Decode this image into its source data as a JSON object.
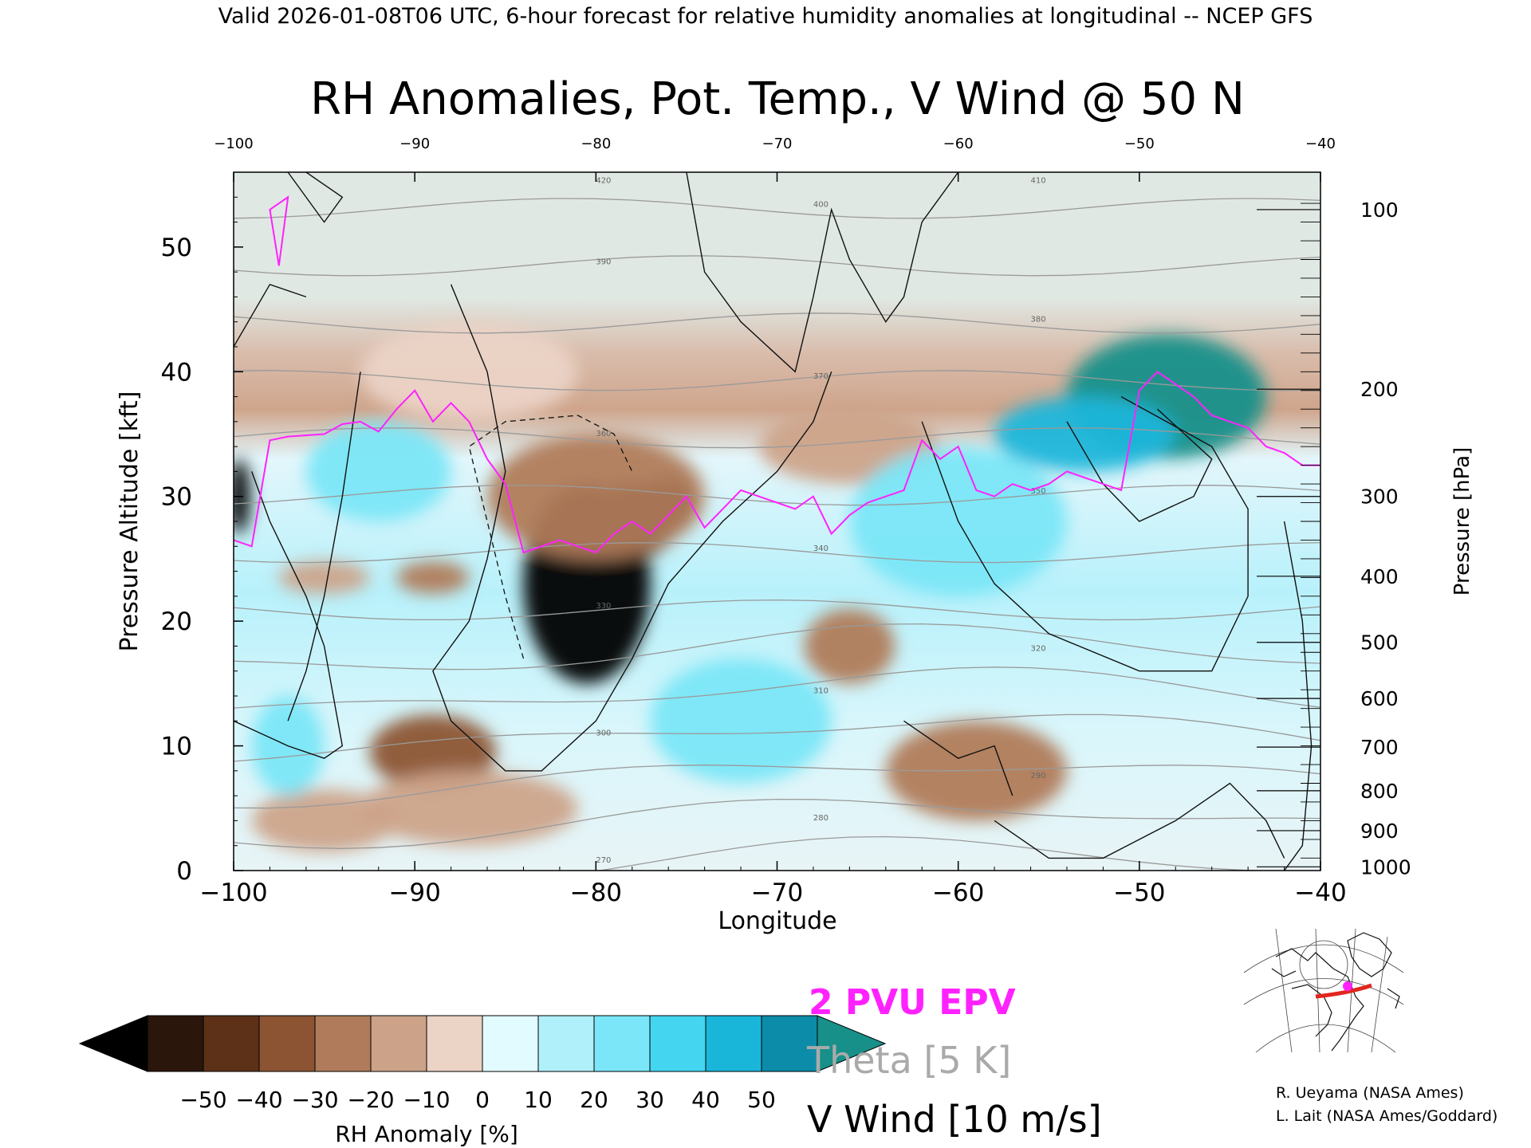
{
  "header": "Valid 2026-01-08T06 UTC, 6-hour forecast for relative humidity anomalies at longitudinal -- NCEP GFS",
  "chart_data": {
    "type": "heatmap",
    "title": "RH Anomalies, Pot. Temp., V Wind @ 50 N",
    "xlabel": "Longitude",
    "ylabel_left": "Pressure Altitude [kft]",
    "ylabel_right": "Pressure [hPa]",
    "xlim": [
      -100,
      -40
    ],
    "ylim": [
      0,
      56
    ],
    "x_ticks": [
      -100,
      -90,
      -80,
      -70,
      -60,
      -50,
      -40
    ],
    "x_tick_labels": [
      "−100",
      "−90",
      "−80",
      "−70",
      "−60",
      "−50",
      "−40"
    ],
    "y_ticks": [
      0,
      10,
      20,
      30,
      40,
      50
    ],
    "pressure_ticks": [
      {
        "hpa": "100",
        "kft": 53
      },
      {
        "hpa": "200",
        "kft": 38.6
      },
      {
        "hpa": "300",
        "kft": 30
      },
      {
        "hpa": "400",
        "kft": 23.6
      },
      {
        "hpa": "500",
        "kft": 18.3
      },
      {
        "hpa": "600",
        "kft": 13.8
      },
      {
        "hpa": "700",
        "kft": 9.9
      },
      {
        "hpa": "800",
        "kft": 6.4
      },
      {
        "hpa": "900",
        "kft": 3.2
      },
      {
        "hpa": "1000",
        "kft": 0.3
      }
    ],
    "rh_anomaly_regions": [
      {
        "lon": -48.5,
        "kft": 38,
        "rlon": 5.5,
        "rkft": 5,
        "value": 50
      },
      {
        "lon": -53,
        "kft": 35,
        "rlon": 5,
        "rkft": 3,
        "value": 40
      },
      {
        "lon": -80.5,
        "kft": 23,
        "rlon": 3.5,
        "rkft": 8,
        "value": -50
      },
      {
        "lon": -78,
        "kft": 28,
        "rlon": 2.5,
        "rkft": 3,
        "value": -50
      },
      {
        "lon": -76,
        "kft": 29.5,
        "rlon": 1.5,
        "rkft": 2,
        "value": -50
      },
      {
        "lon": -99.7,
        "kft": 30,
        "rlon": 0.6,
        "rkft": 3,
        "value": -50
      },
      {
        "lon": -80,
        "kft": 30,
        "rlon": 6,
        "rkft": 5,
        "value": -30
      },
      {
        "lon": -89,
        "kft": 9.5,
        "rlon": 3.5,
        "rkft": 3,
        "value": -40
      },
      {
        "lon": -89,
        "kft": 23.5,
        "rlon": 2,
        "rkft": 1.3,
        "value": -30
      },
      {
        "lon": -95,
        "kft": 23.5,
        "rlon": 2.5,
        "rkft": 1.3,
        "value": -20
      },
      {
        "lon": -66,
        "kft": 18,
        "rlon": 2.5,
        "rkft": 3,
        "value": -30
      },
      {
        "lon": -59,
        "kft": 8,
        "rlon": 5,
        "rkft": 4,
        "value": -30
      },
      {
        "lon": -87,
        "kft": 5,
        "rlon": 6,
        "rkft": 3,
        "value": -20
      },
      {
        "lon": -95,
        "kft": 4,
        "rlon": 4,
        "rkft": 2.5,
        "value": -20
      },
      {
        "lon": -66,
        "kft": 34,
        "rlon": 5,
        "rkft": 3,
        "value": -20
      },
      {
        "lon": -87,
        "kft": 40,
        "rlon": 6,
        "rkft": 4,
        "value": -10
      },
      {
        "lon": -97,
        "kft": 10,
        "rlon": 2,
        "rkft": 4,
        "value": 20
      },
      {
        "lon": -92,
        "kft": 32,
        "rlon": 4,
        "rkft": 4,
        "value": 20
      },
      {
        "lon": -60,
        "kft": 28,
        "rlon": 6,
        "rkft": 6,
        "value": 20
      },
      {
        "lon": -72,
        "kft": 12,
        "rlon": 5,
        "rkft": 5,
        "value": 20
      }
    ],
    "pv_2pvu_line": {
      "lon": [
        -100,
        -99,
        -98,
        -97,
        -95,
        -94,
        -93,
        -92,
        -91,
        -90,
        -89,
        -88,
        -87,
        -86,
        -85,
        -84,
        -83,
        -82,
        -81,
        -80,
        -79,
        -78,
        -77,
        -76,
        -75,
        -74,
        -73,
        -72,
        -71,
        -70,
        -69,
        -68,
        -67,
        -66,
        -65,
        -64,
        -63,
        -62,
        -61,
        -60,
        -59,
        -58,
        -57,
        -56,
        -55,
        -54,
        -53,
        -52,
        -51,
        -50,
        -49,
        -48,
        -47,
        -46,
        -45,
        -44,
        -43,
        -42,
        -41,
        -40
      ],
      "kft": [
        26.5,
        26,
        34.5,
        34.8,
        35,
        35.8,
        36,
        35.2,
        37,
        38.5,
        36,
        37.5,
        36,
        33,
        31,
        25.5,
        26,
        26.5,
        26,
        25.5,
        27,
        28,
        27,
        28.5,
        30,
        27.5,
        29,
        30.5,
        30,
        29.5,
        29,
        30,
        27,
        28.5,
        29.5,
        30,
        30.5,
        34.5,
        33,
        34,
        30.5,
        30,
        31,
        30.5,
        31,
        32,
        31.5,
        31,
        30.5,
        38.5,
        40,
        39,
        38,
        36.5,
        36,
        35.5,
        34,
        33.5,
        32.5,
        32.5
      ]
    },
    "theta_levels_K": [
      270,
      280,
      290,
      300,
      310,
      320,
      330,
      340,
      350,
      360,
      370,
      380,
      390,
      400,
      410,
      420
    ],
    "v_wind_contours_ms": [
      -10,
      0,
      10,
      20,
      30
    ],
    "colorbar": {
      "label": "RH Anomaly [%]",
      "ticks": [
        "−50",
        "−40",
        "−30",
        "−20",
        "−10",
        "0",
        "10",
        "20",
        "30",
        "40",
        "50"
      ],
      "colors": [
        "#2b160b",
        "#5c3118",
        "#8c5433",
        "#b07b5a",
        "#cca389",
        "#ebd3c6",
        "#e2fbff",
        "#b0f0fb",
        "#7ae6f7",
        "#44d6f0",
        "#1ab6da",
        "#0c8ca9"
      ],
      "under_color": "#000000",
      "over_color": "#18908a"
    },
    "legend": {
      "epv": "2 PVU EPV",
      "theta": "Theta [5 K]",
      "vwind": "V Wind [10 m/s]",
      "epv_color": "#ff22ff",
      "theta_color": "#aaaaaa",
      "vwind_color": "#000000"
    }
  },
  "credits": {
    "line1": "R. Ueyama (NASA Ames)",
    "line2": "L. Lait (NASA Ames/Goddard)"
  },
  "colors": {
    "upper_bg": "#e0e8e3",
    "mid_bg": "#e3f8fc",
    "theta_line": "#9a9a9a",
    "pv_line": "#ff22ff",
    "map_track": "#e0261f",
    "map_dot": "#ff22ff"
  }
}
